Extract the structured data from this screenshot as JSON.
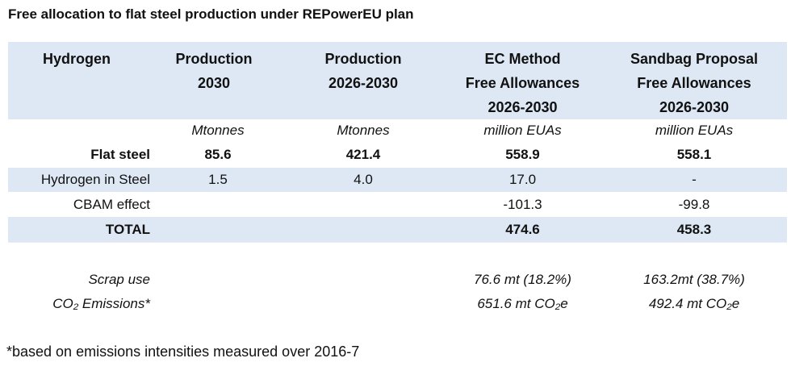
{
  "title": "Free allocation to flat steel production under REPowerEU plan",
  "header": [
    "Hydrogen",
    [
      "Production",
      "2030"
    ],
    [
      "Production",
      "2026-2030"
    ],
    [
      "EC Method",
      "Free Allowances",
      "2026-2030"
    ],
    [
      "Sandbag Proposal",
      "Free Allowances",
      "2026-2030"
    ]
  ],
  "units": [
    "",
    "Mtonnes",
    "Mtonnes",
    "million EUAs",
    "million EUAs"
  ],
  "rows": [
    {
      "label": "Flat steel",
      "cells": [
        "85.6",
        "421.4",
        "558.9",
        "558.1"
      ]
    },
    {
      "label": "Hydrogen in Steel",
      "cells": [
        "1.5",
        "4.0",
        "17.0",
        "-"
      ]
    },
    {
      "label": "CBAM effect",
      "cells": [
        "",
        "",
        "-101.3",
        "-99.8"
      ]
    },
    {
      "label": "TOTAL",
      "cells": [
        "",
        "",
        "474.6",
        "458.3"
      ]
    }
  ],
  "extra": [
    {
      "label": "Scrap use",
      "cells": [
        "76.6 mt (18.2%)",
        "163.2mt (38.7%)"
      ]
    },
    {
      "label": "CO₂ Emissions*",
      "cells": [
        "651.6 mt CO₂e",
        "492.4 mt CO₂e"
      ]
    }
  ],
  "footnote": "*based on emissions intensities measured over 2016-7",
  "colors": {
    "band": "#dde8f4"
  }
}
